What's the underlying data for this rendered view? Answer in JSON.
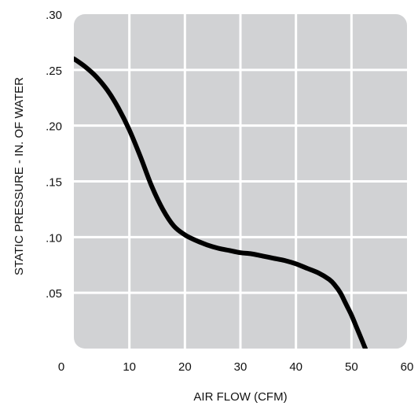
{
  "chart_data": {
    "type": "line",
    "title": "",
    "xlabel": "AIR FLOW (CFM)",
    "ylabel": "STATIC PRESSURE - IN. OF WATER",
    "xlim": [
      0,
      60
    ],
    "ylim": [
      0,
      0.3
    ],
    "x_ticks": [
      0,
      10,
      20,
      30,
      40,
      50,
      60
    ],
    "x_tick_labels": [
      "0",
      "10",
      "20",
      "30",
      "40",
      "50",
      "60"
    ],
    "y_ticks": [
      0.05,
      0.1,
      0.15,
      0.2,
      0.25,
      0.3
    ],
    "y_tick_labels": [
      ".05",
      ".10",
      ".15",
      ".20",
      ".25",
      ".30"
    ],
    "grid": true,
    "legend": "none",
    "colors": {
      "plot_background": "#d1d2d4",
      "grid": "#ffffff",
      "line": "#000000",
      "text": "#111111"
    },
    "series": [
      {
        "x": [
          0,
          2,
          4,
          6,
          8,
          10,
          12,
          14,
          16,
          18,
          20,
          22,
          24,
          26,
          28,
          30,
          32,
          34,
          36,
          38,
          40,
          42,
          44,
          46,
          47,
          48,
          49,
          50,
          51,
          52,
          52.5
        ],
        "y": [
          0.26,
          0.253,
          0.244,
          0.232,
          0.216,
          0.196,
          0.172,
          0.146,
          0.125,
          0.11,
          0.102,
          0.097,
          0.093,
          0.09,
          0.088,
          0.086,
          0.085,
          0.083,
          0.081,
          0.079,
          0.076,
          0.072,
          0.068,
          0.062,
          0.057,
          0.05,
          0.04,
          0.03,
          0.018,
          0.006,
          0.0
        ]
      }
    ]
  }
}
